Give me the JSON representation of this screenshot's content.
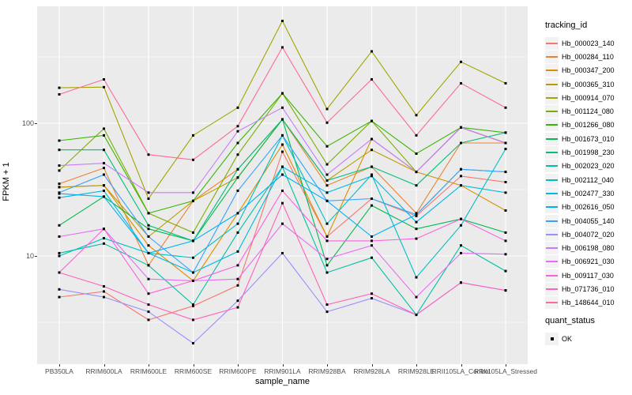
{
  "chart_data": {
    "type": "line",
    "title": "",
    "xlabel": "sample_name",
    "ylabel": "FPKM + 1",
    "y_scale": "log10",
    "y_tick_labels": [
      "100",
      "10"
    ],
    "y_tick_values": [
      100,
      10
    ],
    "y_minor_values": [
      316.23,
      31.62,
      3.162
    ],
    "ylim": [
      1.5,
      760
    ],
    "grid": true,
    "panel_bg": "#EBEBEB",
    "grid_color": "#FFFFFF",
    "tick_text_color": "#4D4D4D",
    "point_marker": {
      "shape": "square",
      "color": "#000000",
      "size": 3
    },
    "legend_position": "right",
    "categories": [
      "PB350LA",
      "RRIM600LA",
      "RRIM600LE",
      "RRIM600SE",
      "RRIM600PE",
      "RRIM901LA",
      "RRIM928BA",
      "RRIM928LA",
      "RRIM928LE",
      "RRII105LA_Control",
      "RRII105LA_Stressed"
    ],
    "series": [
      {
        "name": "Hb_000023_140",
        "color": "#F8766D",
        "values": [
          4.9,
          5.4,
          3.3,
          4.2,
          6.0,
          61,
          14,
          27,
          20,
          40,
          36
        ]
      },
      {
        "name": "Hb_000284_110",
        "color": "#EA8331",
        "values": [
          35,
          46,
          8.5,
          26,
          45,
          107,
          34,
          47,
          21,
          71,
          71
        ]
      },
      {
        "name": "Hb_000347_200",
        "color": "#D89000",
        "values": [
          33,
          34,
          12,
          6.5,
          21,
          69,
          14,
          76,
          43,
          34,
          22
        ]
      },
      {
        "name": "Hb_000365_310",
        "color": "#C09B00",
        "values": [
          33,
          34,
          14,
          26,
          39,
          107,
          37,
          63,
          43,
          93,
          71
        ]
      },
      {
        "name": "Hb_000914_070",
        "color": "#A3A500",
        "values": [
          185,
          187,
          27,
          81,
          131,
          590,
          128,
          348,
          115,
          290,
          200
        ]
      },
      {
        "name": "Hb_001124_080",
        "color": "#7CAE00",
        "values": [
          44,
          91,
          21,
          15,
          58,
          168,
          49,
          104,
          43,
          93,
          71
        ]
      },
      {
        "name": "Hb_001266_080",
        "color": "#39B600",
        "values": [
          74,
          81,
          21,
          26,
          71,
          168,
          67,
          104,
          59,
          93,
          85
        ]
      },
      {
        "name": "Hb_001673_010",
        "color": "#00BB4E",
        "values": [
          17,
          28,
          16,
          13,
          39,
          107,
          8.5,
          24,
          16,
          19,
          15
        ]
      },
      {
        "name": "Hb_001998_230",
        "color": "#00BF7D",
        "values": [
          63,
          63,
          17,
          13,
          45,
          107,
          37,
          47,
          34,
          71,
          85
        ]
      },
      {
        "name": "Hb_002023_020",
        "color": "#00C1A3",
        "values": [
          10.5,
          12.4,
          8.5,
          4.3,
          15,
          47,
          7.5,
          9.7,
          3.6,
          12,
          7.7
        ]
      },
      {
        "name": "Hb_002112_040",
        "color": "#00BFC4",
        "values": [
          10,
          13.6,
          10.5,
          9.7,
          17.5,
          81,
          17.5,
          41,
          6.9,
          17,
          64
        ]
      },
      {
        "name": "Hb_002477_330",
        "color": "#00BAE0",
        "values": [
          27.5,
          31,
          10.5,
          7.5,
          10.8,
          47,
          30,
          40,
          18,
          34,
          30
        ]
      },
      {
        "name": "Hb_002616_050",
        "color": "#00B0F6",
        "values": [
          29.5,
          28,
          10.5,
          13,
          21,
          41,
          26,
          14,
          20.5,
          45,
          43
        ]
      },
      {
        "name": "Hb_004055_140",
        "color": "#35A2FF",
        "values": [
          30,
          41,
          14,
          7.5,
          31,
          81,
          26,
          27,
          20.5,
          45,
          43
        ]
      },
      {
        "name": "Hb_004072_020",
        "color": "#9590FF",
        "values": [
          5.6,
          4.9,
          3.8,
          2.2,
          4.6,
          10.5,
          3.8,
          4.8,
          3.6,
          6.3,
          5.5
        ]
      },
      {
        "name": "Hb_006198_080",
        "color": "#C77CFF",
        "values": [
          48,
          50,
          30,
          30,
          87,
          131,
          41,
          76,
          43,
          93,
          71
        ]
      },
      {
        "name": "Hb_006921_030",
        "color": "#E76BF3",
        "values": [
          14,
          16,
          6.7,
          6.5,
          6.7,
          17.5,
          9.5,
          12,
          4.9,
          10.5,
          10.3
        ]
      },
      {
        "name": "Hb_009117_030",
        "color": "#FA62DB",
        "values": [
          7.5,
          16,
          5.2,
          6.5,
          8.5,
          31,
          13,
          13,
          13.5,
          19,
          13
        ]
      },
      {
        "name": "Hb_071736_010",
        "color": "#FF62BC",
        "values": [
          7.5,
          5.9,
          4.3,
          3.3,
          4.1,
          25,
          4.3,
          5.2,
          3.6,
          6.3,
          5.5
        ]
      },
      {
        "name": "Hb_148644_010",
        "color": "#FF6A98",
        "values": [
          165,
          214,
          58,
          53,
          95,
          373,
          101,
          214,
          81,
          200,
          131
        ]
      }
    ],
    "legend": {
      "tracking_title": "tracking_id",
      "quant_title": "quant_status",
      "quant_value": "OK"
    }
  }
}
